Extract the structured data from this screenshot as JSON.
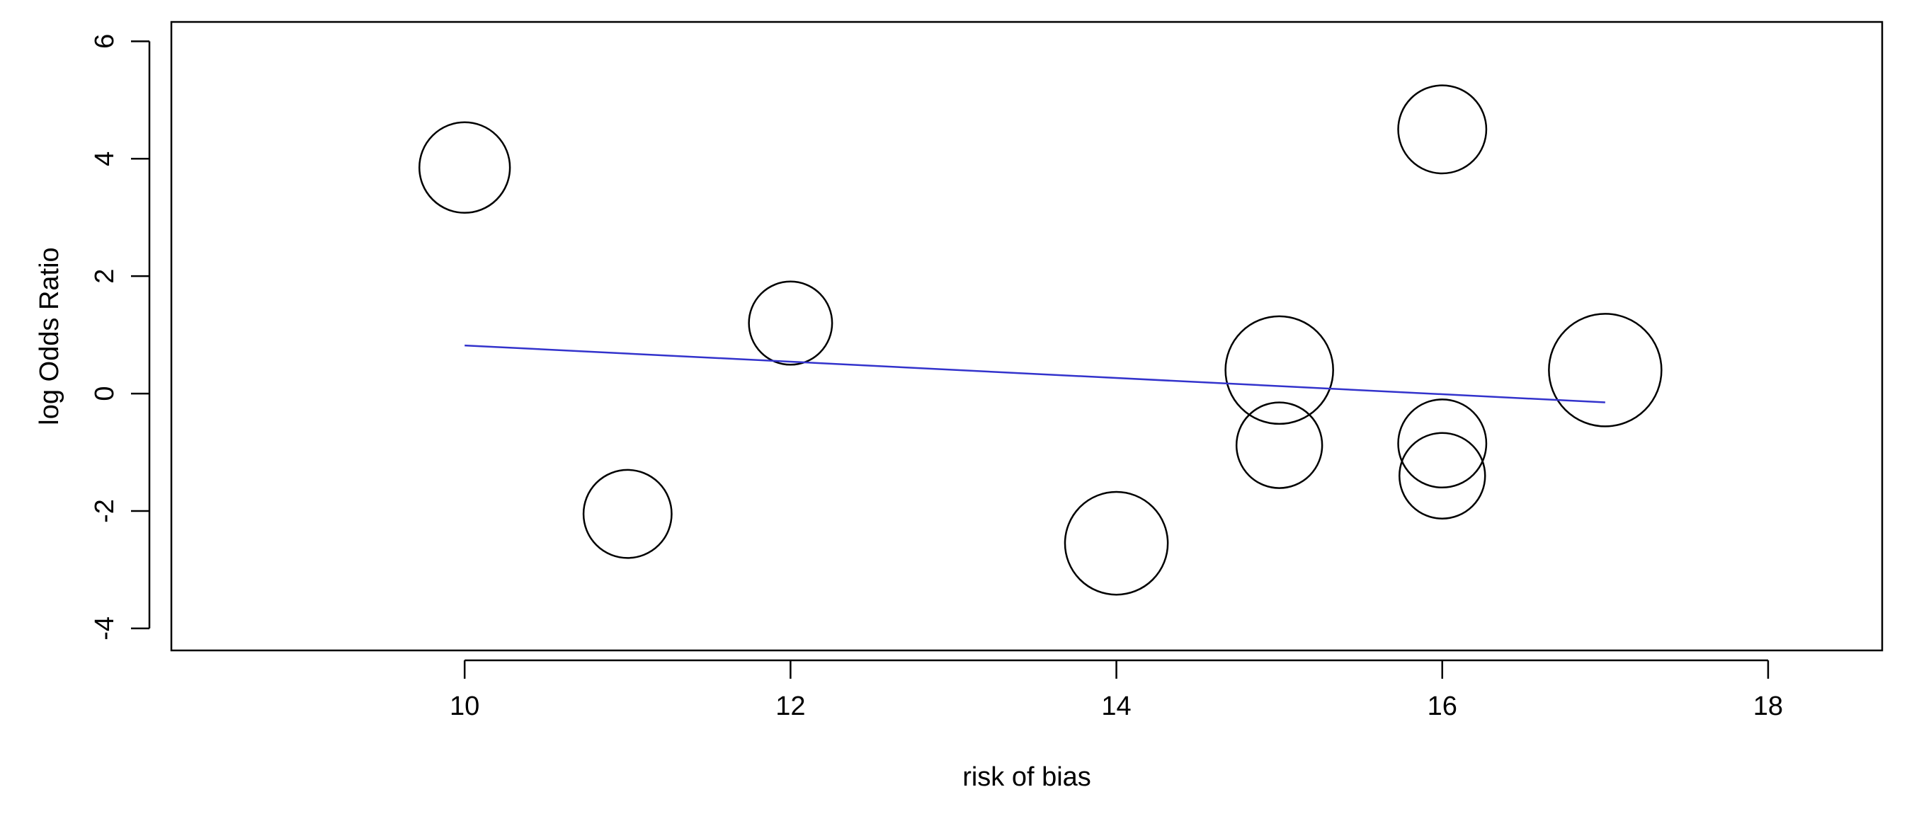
{
  "chart_data": {
    "type": "bubble",
    "xlabel": "risk of bias",
    "ylabel": "log Odds Ratio",
    "x": [
      10,
      11,
      12,
      14,
      15,
      15,
      16,
      16,
      16,
      17
    ],
    "values": [
      3.85,
      -2.05,
      1.2,
      -2.55,
      0.4,
      -0.88,
      4.5,
      -0.85,
      -1.4,
      0.4
    ],
    "sizes": [
      37,
      36,
      34,
      42,
      44,
      35,
      36,
      36,
      35,
      46
    ],
    "color": "#000000",
    "fit": {
      "x": [
        10,
        17
      ],
      "values": [
        0.82,
        -0.15
      ],
      "color": "#3333cc"
    },
    "xlim": [
      8.2,
      18.7
    ],
    "ylim": [
      -4.375,
      6.33
    ],
    "xticks": [
      10,
      12,
      14,
      16,
      18
    ],
    "yticks": [
      -4,
      -2,
      0,
      2,
      4,
      6
    ]
  }
}
